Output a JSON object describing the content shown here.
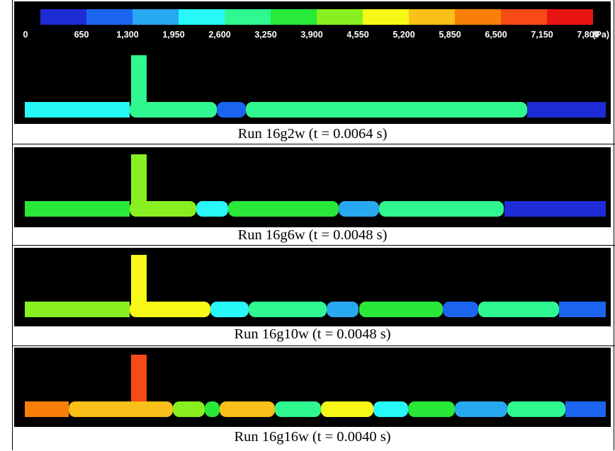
{
  "legend": {
    "unit": "(Pa)",
    "colors": [
      "#1e2cd6",
      "#1a64f0",
      "#28a8f0",
      "#28f8f8",
      "#30f890",
      "#28e838",
      "#88f020",
      "#f8f818",
      "#f8c018",
      "#f87f0a",
      "#f84a14",
      "#e81414"
    ],
    "ticks": [
      "0",
      "650",
      "1,300",
      "1,950",
      "2,600",
      "3,250",
      "3,900",
      "4,550",
      "5,200",
      "5,850",
      "6,500",
      "7,150",
      "7,800"
    ]
  },
  "runs": [
    {
      "caption": "Run 16g2w (t = 0.0064 s)",
      "branch_color": "#30f890",
      "segments": [
        {
          "from": 0,
          "to": 0.18,
          "color": "#28f8f8"
        },
        {
          "from": 0.18,
          "to": 0.33,
          "color": "#30f890"
        },
        {
          "from": 0.33,
          "to": 0.38,
          "color": "#1a64f0"
        },
        {
          "from": 0.38,
          "to": 0.865,
          "color": "#30f890"
        },
        {
          "from": 0.865,
          "to": 1,
          "color": "#1e2cd6"
        }
      ]
    },
    {
      "caption": "Run 16g6w (t = 0.0048 s)",
      "branch_color": "#88f020",
      "segments": [
        {
          "from": 0,
          "to": 0.18,
          "color": "#28e838"
        },
        {
          "from": 0.18,
          "to": 0.295,
          "color": "#88f020"
        },
        {
          "from": 0.295,
          "to": 0.35,
          "color": "#28f8f8"
        },
        {
          "from": 0.35,
          "to": 0.54,
          "color": "#28e838"
        },
        {
          "from": 0.54,
          "to": 0.61,
          "color": "#28a8f0"
        },
        {
          "from": 0.61,
          "to": 0.825,
          "color": "#30f890"
        },
        {
          "from": 0.825,
          "to": 1,
          "color": "#1e2cd6"
        }
      ]
    },
    {
      "caption": "Run 16g10w (t = 0.0048 s)",
      "branch_color": "#f8f818",
      "segments": [
        {
          "from": 0,
          "to": 0.18,
          "color": "#88f020"
        },
        {
          "from": 0.18,
          "to": 0.32,
          "color": "#f8f818"
        },
        {
          "from": 0.32,
          "to": 0.385,
          "color": "#28f8f8"
        },
        {
          "from": 0.385,
          "to": 0.52,
          "color": "#30f890"
        },
        {
          "from": 0.52,
          "to": 0.575,
          "color": "#28a8f0"
        },
        {
          "from": 0.575,
          "to": 0.72,
          "color": "#28e838"
        },
        {
          "from": 0.72,
          "to": 0.78,
          "color": "#1a64f0"
        },
        {
          "from": 0.78,
          "to": 0.92,
          "color": "#30f890"
        },
        {
          "from": 0.92,
          "to": 1,
          "color": "#1a64f0"
        }
      ]
    },
    {
      "caption": "Run 16g16w (t = 0.0040 s)",
      "branch_color": "#f84a14",
      "segments": [
        {
          "from": 0,
          "to": 0.075,
          "color": "#f87f0a"
        },
        {
          "from": 0.075,
          "to": 0.255,
          "color": "#f8c018"
        },
        {
          "from": 0.255,
          "to": 0.31,
          "color": "#88f020"
        },
        {
          "from": 0.31,
          "to": 0.335,
          "color": "#28e838"
        },
        {
          "from": 0.335,
          "to": 0.43,
          "color": "#f8c018"
        },
        {
          "from": 0.43,
          "to": 0.51,
          "color": "#30f890"
        },
        {
          "from": 0.51,
          "to": 0.6,
          "color": "#f8f818"
        },
        {
          "from": 0.6,
          "to": 0.66,
          "color": "#28f8f8"
        },
        {
          "from": 0.66,
          "to": 0.74,
          "color": "#28e838"
        },
        {
          "from": 0.74,
          "to": 0.83,
          "color": "#28a8f0"
        },
        {
          "from": 0.83,
          "to": 0.93,
          "color": "#30f890"
        },
        {
          "from": 0.93,
          "to": 1,
          "color": "#1a64f0"
        }
      ]
    }
  ]
}
